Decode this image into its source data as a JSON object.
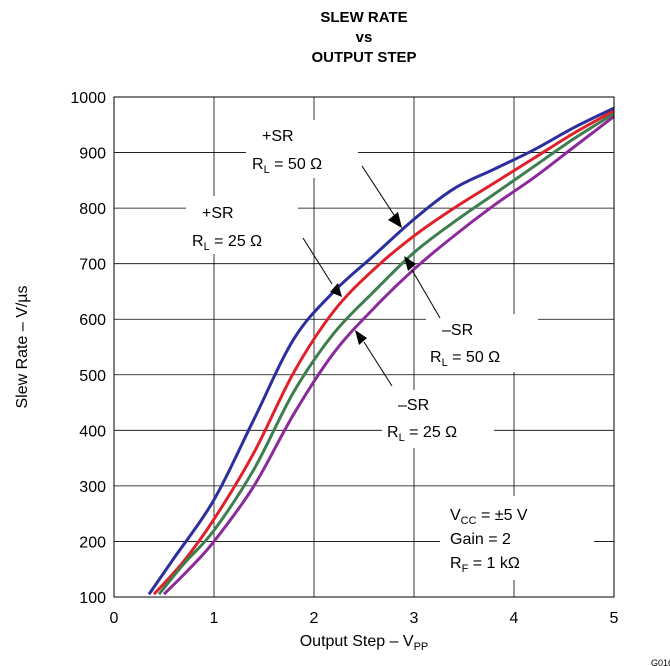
{
  "chart_data": {
    "type": "line",
    "title": [
      "SLEW RATE",
      "vs",
      "OUTPUT STEP"
    ],
    "xlabel": "Output Step – V",
    "xlabel_sub": "PP",
    "ylabel": "Slew Rate – V/µs",
    "xlim": [
      0,
      5
    ],
    "ylim": [
      100,
      1000
    ],
    "xticks": [
      "0",
      "1",
      "2",
      "3",
      "4",
      "5"
    ],
    "yticks": [
      "100",
      "200",
      "300",
      "400",
      "500",
      "600",
      "700",
      "800",
      "900",
      "1000"
    ],
    "grid": true,
    "series": [
      {
        "color": "#2b2f9e",
        "x": [
          0.35,
          0.6,
          1.0,
          1.4,
          1.8,
          2.2,
          2.6,
          3.0,
          3.4,
          3.8,
          4.2,
          4.6,
          5.0
        ],
        "y": [
          105,
          170,
          275,
          420,
          565,
          650,
          715,
          780,
          835,
          870,
          905,
          945,
          980
        ]
      },
      {
        "color": "#e0202a",
        "x": [
          0.4,
          0.7,
          1.0,
          1.4,
          1.8,
          2.2,
          2.6,
          3.0,
          3.4,
          3.8,
          4.2,
          4.6,
          5.0
        ],
        "y": [
          105,
          165,
          240,
          360,
          505,
          615,
          690,
          750,
          800,
          845,
          890,
          935,
          975
        ]
      },
      {
        "color": "#3f7e4e",
        "x": [
          0.45,
          0.7,
          1.0,
          1.4,
          1.8,
          2.2,
          2.6,
          3.0,
          3.4,
          3.8,
          4.2,
          4.6,
          5.0
        ],
        "y": [
          105,
          160,
          220,
          330,
          470,
          575,
          650,
          720,
          775,
          825,
          875,
          925,
          970
        ]
      },
      {
        "color": "#8b2a9a",
        "x": [
          0.5,
          0.75,
          1.0,
          1.4,
          1.8,
          2.2,
          2.6,
          3.0,
          3.4,
          3.8,
          4.2,
          4.6,
          5.0
        ],
        "y": [
          105,
          150,
          200,
          300,
          430,
          540,
          620,
          690,
          750,
          805,
          855,
          910,
          965
        ]
      }
    ],
    "annotations": [
      {
        "line1": "+SR",
        "line2": "R",
        "sub": "L",
        "line2_rest": " = 50 Ω"
      },
      {
        "line1": "+SR",
        "line2": "R",
        "sub": "L",
        "line2_rest": " = 25 Ω"
      },
      {
        "line1": "–SR",
        "line2": "R",
        "sub": "L",
        "line2_rest": " = 50 Ω"
      },
      {
        "line1": "–SR",
        "line2": "R",
        "sub": "L",
        "line2_rest": " = 25 Ω"
      }
    ],
    "conditions": [
      {
        "main": "V",
        "sub": "CC",
        "rest": " = ±5 V"
      },
      {
        "main": "Gain = 2",
        "sub": "",
        "rest": ""
      },
      {
        "main": "R",
        "sub": "F",
        "rest": " = 1 kΩ"
      }
    ],
    "corner_text": "G016"
  }
}
